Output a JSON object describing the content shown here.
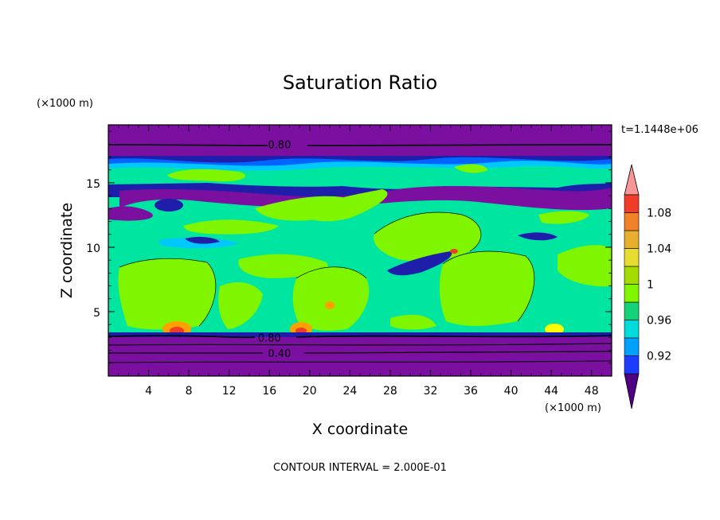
{
  "chart_data": {
    "type": "heatmap",
    "subtype": "filled-contour",
    "title": "Saturation Ratio",
    "xlabel": "X coordinate",
    "ylabel": "Z coordinate",
    "x_units": "(×1000 m)",
    "y_units": "(×1000 m)",
    "xlim": [
      0,
      50
    ],
    "ylim": [
      0,
      19.5
    ],
    "x_ticks": [
      4,
      8,
      12,
      16,
      20,
      24,
      28,
      32,
      36,
      40,
      44,
      48
    ],
    "y_ticks": [
      5,
      10,
      15
    ],
    "time_label": "t=1.1448e+06",
    "footer": "CONTOUR INTERVAL = 2.000E-01",
    "contour_labels": [
      {
        "text": "0.80",
        "x": 17,
        "z": 18
      },
      {
        "text": "0.80",
        "x": 16,
        "z": 3
      },
      {
        "text": "0.40",
        "x": 17,
        "z": 1.8
      }
    ],
    "colorbar": {
      "tick_labels": [
        "0.92",
        "0.96",
        "1",
        "1.04",
        "1.08"
      ],
      "tick_values": [
        0.92,
        0.96,
        1.0,
        1.04,
        1.08
      ],
      "levels": [
        0.9,
        0.92,
        0.94,
        0.96,
        0.98,
        1.0,
        1.02,
        1.04,
        1.06,
        1.08,
        1.1
      ],
      "colors": [
        "#500082",
        "#1e3cff",
        "#00a0ff",
        "#00dcdc",
        "#14d278",
        "#82f500",
        "#a5dc00",
        "#e6dc32",
        "#e6af2d",
        "#f08228",
        "#f03c28",
        "#fa9696"
      ],
      "extend": "both"
    },
    "colors": {
      "below_min": "#7a0fa0",
      "band_092": "#1e1eaa",
      "band_094": "#0064ff",
      "band_096": "#00c8ff",
      "band_098": "#00e6a0",
      "band_100": "#7ff500",
      "band_102": "#b4f040",
      "band_104": "#ffff00",
      "band_106": "#ffa000",
      "band_108": "#ff5000",
      "band_110": "#f02020",
      "above_max": "#f4a0a0"
    }
  }
}
